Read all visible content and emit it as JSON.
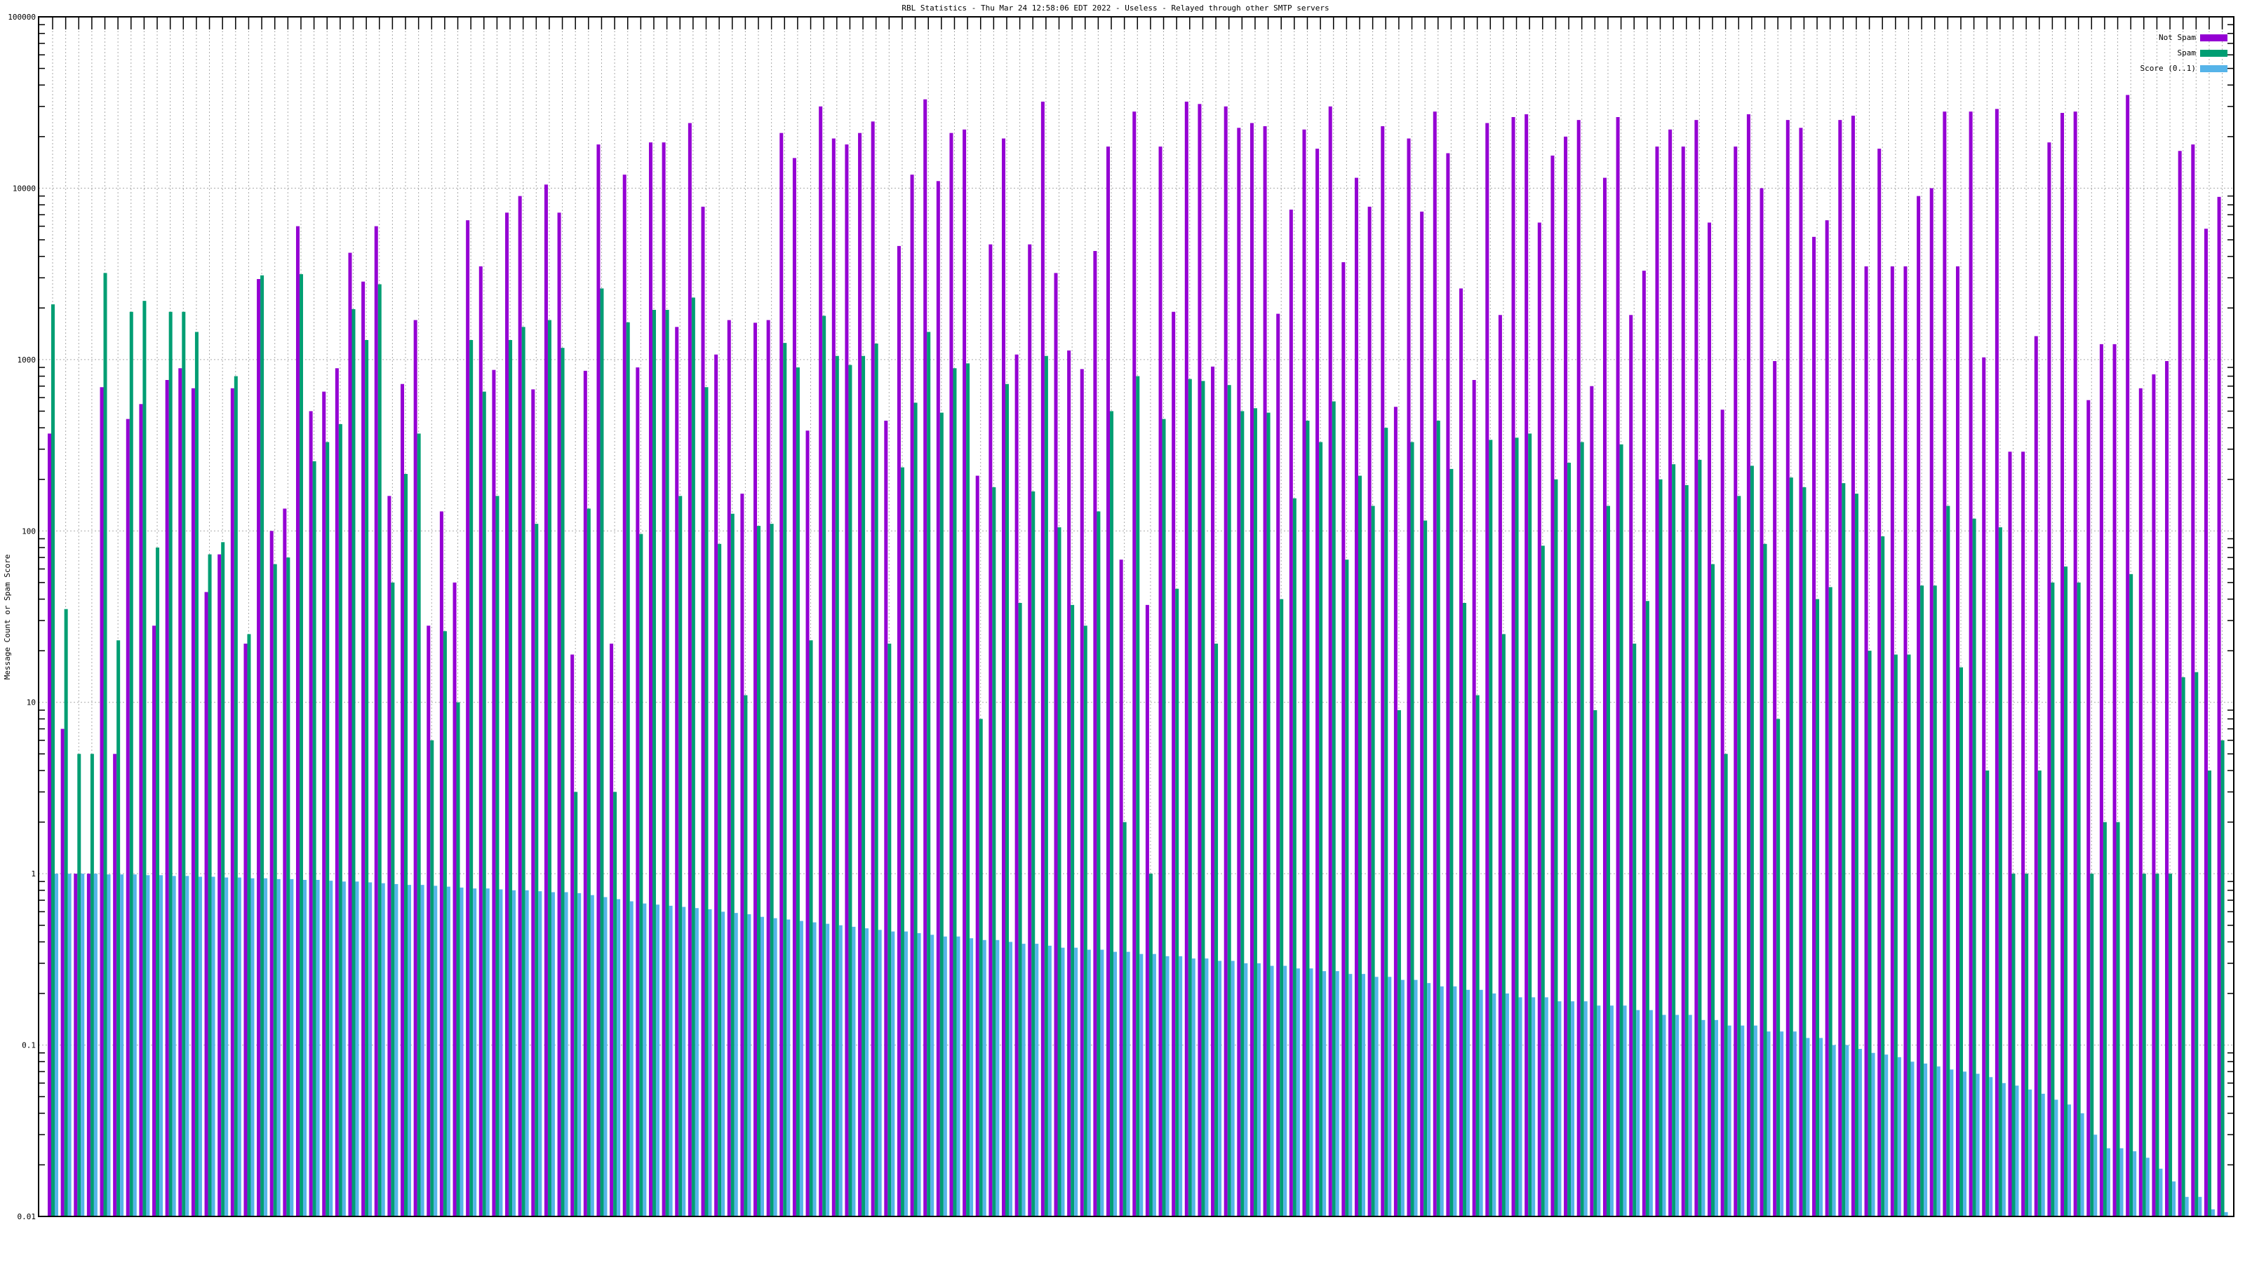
{
  "chart_data": {
    "type": "bar",
    "title": "RBL Statistics - Thu Mar 24 12:58:06 EDT 2022 - Useless - Relayed through other SMTP servers",
    "xlabel": "",
    "ylabel": "Message Count or Spam Score",
    "yscale": "log",
    "ylim": [
      0.01,
      100000
    ],
    "yticks": [
      "0.01",
      "0.1",
      "1",
      "10",
      "100",
      "1000",
      "10000",
      "100000"
    ],
    "grid": true,
    "legend_position": "top-right",
    "colors": {
      "not_spam": "#9400d3",
      "spam": "#009e73",
      "score": "#56b4e9"
    },
    "series": [
      {
        "name": "Not Spam",
        "key": "not_spam",
        "values": [
          370,
          7,
          1,
          1,
          690,
          5,
          450,
          550,
          28,
          760,
          890,
          680,
          44,
          73,
          680,
          22,
          2950,
          100,
          135,
          6000,
          500,
          650,
          890,
          4200,
          2850,
          6000,
          160,
          720,
          1700,
          28,
          130,
          50,
          6500,
          3500,
          870,
          7200,
          9000,
          670,
          10500,
          7200,
          19,
          860,
          18000,
          22,
          12000,
          900,
          18500,
          18500,
          1550,
          24000,
          7800,
          1070,
          1700,
          165,
          1640,
          1700,
          21000,
          15000,
          385,
          30000,
          19500,
          18000,
          21000,
          24500,
          440,
          4600,
          12000,
          33000,
          11000,
          21000,
          22000,
          210,
          4700,
          19500,
          1070,
          4700,
          32000,
          3200,
          1130,
          880,
          4300,
          17500,
          68,
          28000,
          37,
          17500,
          1900,
          32000,
          31000,
          910,
          30000,
          22500,
          24000,
          23000,
          1850,
          7500,
          22000,
          17000,
          30000,
          3700,
          11500,
          7800,
          23000,
          530,
          19500,
          7300,
          28000,
          16000,
          2600,
          760,
          24000,
          1820,
          26000,
          27000,
          6300,
          15500,
          20000,
          25000,
          700,
          11500,
          26000,
          1820,
          3300,
          17500,
          22000,
          17500,
          25000,
          6300,
          510,
          17500,
          27000,
          10000,
          980,
          25000,
          22500,
          5200,
          6500,
          25000,
          26500,
          3500,
          17000,
          3500,
          3500,
          9000,
          10000,
          28000,
          3500,
          28000,
          1030,
          29000,
          290,
          290,
          1370,
          18500,
          27500,
          28000,
          580,
          1230,
          1230,
          35000,
          680,
          820,
          980,
          16500,
          18000,
          5800,
          8900
        ]
      },
      {
        "name": "Spam",
        "key": "spam",
        "values": [
          2100,
          35,
          5,
          5,
          3200,
          23,
          1900,
          2200,
          80,
          1900,
          1900,
          1450,
          73,
          86,
          800,
          25,
          3100,
          64,
          70,
          3150,
          255,
          330,
          420,
          1970,
          1300,
          2750,
          50,
          215,
          370,
          6,
          26,
          10,
          1300,
          650,
          160,
          1300,
          1550,
          110,
          1700,
          1170,
          3,
          135,
          2600,
          3,
          1650,
          96,
          1950,
          1950,
          160,
          2300,
          690,
          84,
          126,
          11,
          107,
          110,
          1250,
          900,
          23,
          1800,
          1050,
          930,
          1050,
          1240,
          22,
          235,
          560,
          1450,
          490,
          890,
          950,
          8,
          180,
          720,
          38,
          170,
          1050,
          105,
          37,
          28,
          130,
          500,
          2,
          800,
          1,
          450,
          46,
          770,
          750,
          22,
          710,
          500,
          520,
          490,
          40,
          155,
          440,
          330,
          570,
          68,
          210,
          140,
          400,
          9,
          330,
          115,
          440,
          230,
          38,
          11,
          340,
          25,
          350,
          370,
          82,
          200,
          250,
          330,
          9,
          140,
          320,
          22,
          39,
          200,
          245,
          185,
          260,
          64,
          5,
          160,
          240,
          84,
          8,
          205,
          180,
          40,
          47,
          190,
          165,
          20,
          93,
          19,
          19,
          48,
          48,
          140,
          16,
          118,
          4,
          105,
          1,
          1,
          4,
          50,
          62,
          50,
          1,
          2,
          2,
          56,
          1,
          1,
          1,
          14,
          15,
          4,
          6
        ]
      },
      {
        "name": "Score (0..1)",
        "key": "score",
        "values": [
          1,
          1,
          1,
          1,
          0.99,
          0.99,
          0.99,
          0.98,
          0.98,
          0.97,
          0.97,
          0.96,
          0.96,
          0.95,
          0.95,
          0.94,
          0.94,
          0.93,
          0.93,
          0.92,
          0.92,
          0.91,
          0.9,
          0.9,
          0.89,
          0.88,
          0.87,
          0.86,
          0.86,
          0.85,
          0.84,
          0.83,
          0.82,
          0.82,
          0.81,
          0.8,
          0.8,
          0.79,
          0.78,
          0.78,
          0.77,
          0.75,
          0.73,
          0.71,
          0.69,
          0.67,
          0.66,
          0.65,
          0.64,
          0.63,
          0.62,
          0.6,
          0.59,
          0.58,
          0.56,
          0.55,
          0.54,
          0.53,
          0.52,
          0.51,
          0.5,
          0.49,
          0.48,
          0.47,
          0.46,
          0.46,
          0.45,
          0.44,
          0.43,
          0.43,
          0.42,
          0.41,
          0.41,
          0.4,
          0.39,
          0.39,
          0.38,
          0.37,
          0.37,
          0.36,
          0.36,
          0.35,
          0.35,
          0.34,
          0.34,
          0.33,
          0.33,
          0.32,
          0.32,
          0.31,
          0.31,
          0.3,
          0.3,
          0.29,
          0.29,
          0.28,
          0.28,
          0.27,
          0.27,
          0.26,
          0.26,
          0.25,
          0.25,
          0.24,
          0.24,
          0.23,
          0.22,
          0.22,
          0.21,
          0.21,
          0.2,
          0.2,
          0.19,
          0.19,
          0.19,
          0.18,
          0.18,
          0.18,
          0.17,
          0.17,
          0.17,
          0.16,
          0.16,
          0.15,
          0.15,
          0.15,
          0.14,
          0.14,
          0.13,
          0.13,
          0.13,
          0.12,
          0.12,
          0.12,
          0.11,
          0.11,
          0.1,
          0.1,
          0.095,
          0.09,
          0.088,
          0.085,
          0.08,
          0.078,
          0.075,
          0.072,
          0.07,
          0.068,
          0.065,
          0.06,
          0.058,
          0.055,
          0.052,
          0.048,
          0.045,
          0.04,
          0.03,
          0.025,
          0.025,
          0.024,
          0.022,
          0.019,
          0.016,
          0.013,
          0.013,
          0.011,
          0.0106
        ]
      }
    ]
  }
}
